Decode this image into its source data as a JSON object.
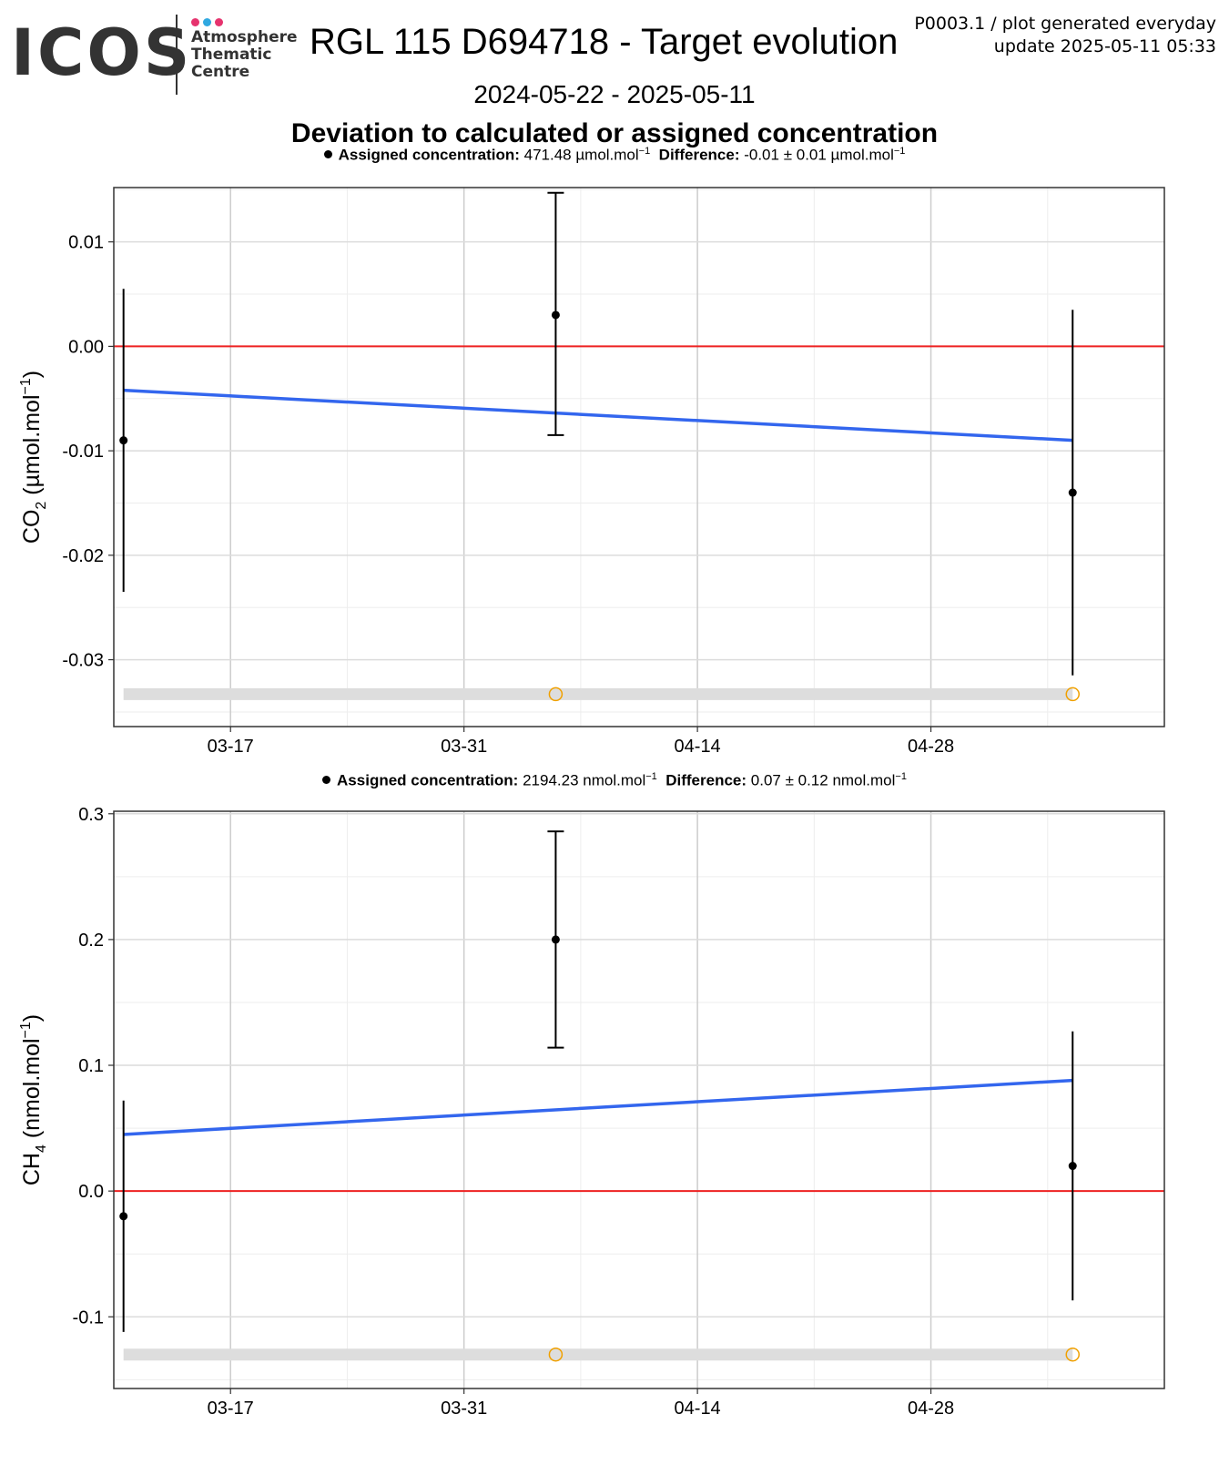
{
  "header": {
    "logo_word": "ICOS",
    "logo_lines": [
      "Atmosphere",
      "Thematic",
      "Centre"
    ],
    "logo_dot_colors": [
      "#e6336e",
      "#2fa8e0",
      "#e6336e"
    ],
    "title": "RGL 115 D694718 - Target evolution",
    "meta_line1": "P0003.1 / plot generated everyday",
    "meta_line2": "update  2025-05-11 05:33",
    "date_range": "2024-05-22 - 2025-05-11",
    "subtitle": "Deviation to calculated or assigned concentration"
  },
  "colors": {
    "trend": "#3366ee",
    "zero_line": "#ee2222",
    "points": "#000000",
    "flag_marker": "#f0a000",
    "flag_band": "#dddddd"
  },
  "chart_data": [
    {
      "type": "scatter",
      "gas": "CO2",
      "legend": {
        "assigned_label": "Assigned concentration:",
        "assigned_value": "471.48 µmol.mol",
        "assigned_unit_exp": "−1",
        "difference_label": "Difference:",
        "difference_value": "-0.01 ± 0.01 µmol.mol",
        "difference_unit_exp": "−1"
      },
      "ylabel_main": "CO",
      "ylabel_sub": "2",
      "ylabel_unit": " (µmol.mol",
      "ylabel_exp": "−1",
      "ylabel_close": ")",
      "x_ticks": [
        "2025-03-17",
        "2025-03-31",
        "2025-04-14",
        "2025-04-28"
      ],
      "x_tick_labels": [
        "03-17",
        "03-31",
        "04-14",
        "04-28"
      ],
      "xlim": [
        "2025-03-10",
        "2025-05-12"
      ],
      "y_ticks": [
        0.01,
        0.0,
        -0.01,
        -0.02,
        -0.03
      ],
      "y_tick_labels": [
        "0.01",
        "0.00",
        "-0.01",
        "-0.02",
        "-0.03"
      ],
      "ylim": [
        -0.0364,
        0.0152
      ],
      "points": [
        {
          "x": "2025-03-10T14:00",
          "y": -0.009,
          "err_low": -0.0235,
          "err_high": 0.0055
        },
        {
          "x": "2025-04-05T12:00",
          "y": 0.003,
          "err_low": -0.0085,
          "err_high": 0.0147
        },
        {
          "x": "2025-05-06T12:00",
          "y": -0.014,
          "err_low": -0.0315,
          "err_high": 0.0035
        }
      ],
      "trend": [
        {
          "x": "2025-03-10T14:00",
          "y": -0.0042
        },
        {
          "x": "2025-05-06T12:00",
          "y": -0.009
        }
      ],
      "flag_y": -0.0333,
      "flags": [
        "2025-04-05T12:00",
        "2025-05-06T12:00"
      ]
    },
    {
      "type": "scatter",
      "gas": "CH4",
      "legend": {
        "assigned_label": "Assigned concentration:",
        "assigned_value": "2194.23 nmol.mol",
        "assigned_unit_exp": "−1",
        "difference_label": "Difference:",
        "difference_value": "0.07 ± 0.12 nmol.mol",
        "difference_unit_exp": "−1"
      },
      "ylabel_main": "CH",
      "ylabel_sub": "4",
      "ylabel_unit": " (nmol.mol",
      "ylabel_exp": "−1",
      "ylabel_close": ")",
      "x_ticks": [
        "2025-03-17",
        "2025-03-31",
        "2025-04-14",
        "2025-04-28"
      ],
      "x_tick_labels": [
        "03-17",
        "03-31",
        "04-14",
        "04-28"
      ],
      "xlim": [
        "2025-03-10",
        "2025-05-12"
      ],
      "y_ticks": [
        0.3,
        0.2,
        0.1,
        0.0,
        -0.1
      ],
      "y_tick_labels": [
        "0.3",
        "0.2",
        "0.1",
        "0.0",
        "-0.1"
      ],
      "ylim": [
        -0.157,
        0.302
      ],
      "points": [
        {
          "x": "2025-03-10T14:00",
          "y": -0.02,
          "err_low": -0.112,
          "err_high": 0.072
        },
        {
          "x": "2025-04-05T12:00",
          "y": 0.2,
          "err_low": 0.114,
          "err_high": 0.286
        },
        {
          "x": "2025-05-06T12:00",
          "y": 0.02,
          "err_low": -0.087,
          "err_high": 0.127
        }
      ],
      "trend": [
        {
          "x": "2025-03-10T14:00",
          "y": 0.045
        },
        {
          "x": "2025-05-06T12:00",
          "y": 0.088
        }
      ],
      "flag_y": -0.13,
      "flags": [
        "2025-04-05T12:00",
        "2025-05-06T12:00"
      ]
    }
  ]
}
